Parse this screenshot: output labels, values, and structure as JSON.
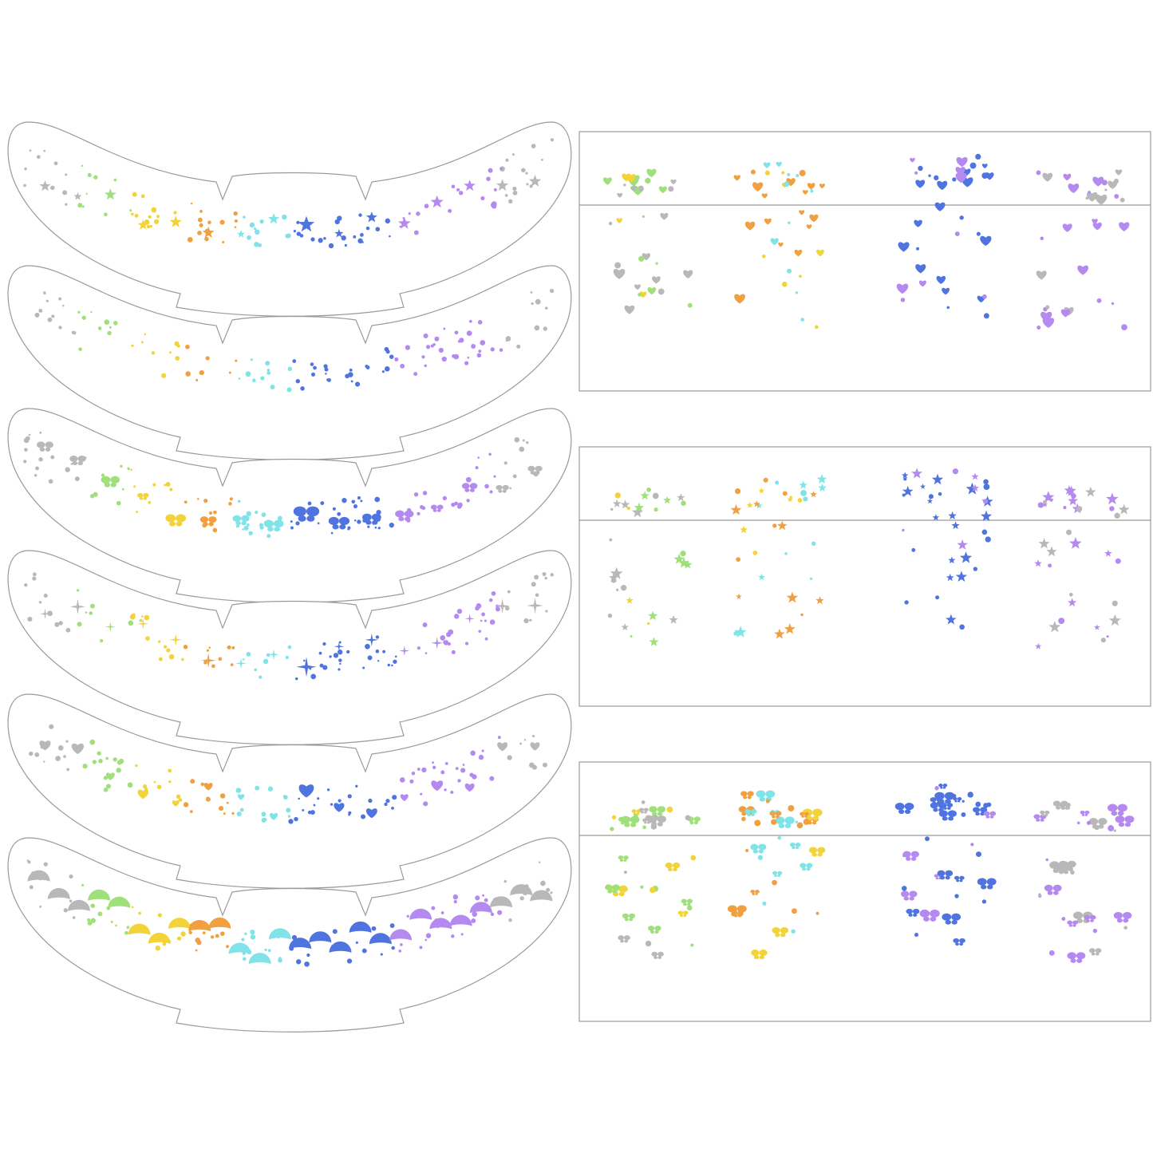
{
  "colors": {
    "background": "#ffffff",
    "outline": "#9a9a9a",
    "silver": "#b8b8b8",
    "yellow": "#f2d43a",
    "orange": "#f0a040",
    "green": "#9fe07a",
    "cyan": "#7fe3e8",
    "blue": "#4f74e0",
    "purple": "#b58af0"
  },
  "masks": [
    {
      "theme": "stars",
      "icon": "star-icon"
    },
    {
      "theme": "moons-and-swirls",
      "icon": "moon-icon"
    },
    {
      "theme": "butterflies",
      "icon": "butterfly-icon"
    },
    {
      "theme": "flames-and-sparkles",
      "icon": "sparkle-icon"
    },
    {
      "theme": "hearts",
      "icon": "heart-icon"
    },
    {
      "theme": "mermaid-scales",
      "icon": "scale-icon"
    }
  ],
  "sheets": [
    {
      "theme": "hearts",
      "icon": "heart-icon"
    },
    {
      "theme": "stars-and-moon",
      "icon": "star-icon"
    },
    {
      "theme": "butterflies",
      "icon": "butterfly-icon"
    }
  ]
}
